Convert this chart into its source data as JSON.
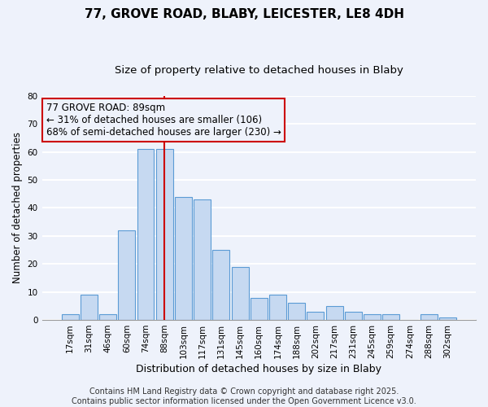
{
  "title": "77, GROVE ROAD, BLABY, LEICESTER, LE8 4DH",
  "subtitle": "Size of property relative to detached houses in Blaby",
  "xlabel": "Distribution of detached houses by size in Blaby",
  "ylabel": "Number of detached properties",
  "bar_labels": [
    "17sqm",
    "31sqm",
    "46sqm",
    "60sqm",
    "74sqm",
    "88sqm",
    "103sqm",
    "117sqm",
    "131sqm",
    "145sqm",
    "160sqm",
    "174sqm",
    "188sqm",
    "202sqm",
    "217sqm",
    "231sqm",
    "245sqm",
    "259sqm",
    "274sqm",
    "288sqm",
    "302sqm"
  ],
  "bar_values": [
    2,
    9,
    2,
    32,
    61,
    61,
    44,
    43,
    25,
    19,
    8,
    9,
    6,
    3,
    5,
    3,
    2,
    2,
    0,
    2,
    1
  ],
  "bar_color": "#c6d9f1",
  "bar_edgecolor": "#5b9bd5",
  "highlight_index": 5,
  "highlight_line_color": "#cc0000",
  "annotation_text": "77 GROVE ROAD: 89sqm\n← 31% of detached houses are smaller (106)\n68% of semi-detached houses are larger (230) →",
  "annotation_box_edgecolor": "#cc0000",
  "background_color": "#eef2fb",
  "grid_color": "#ffffff",
  "ylim": [
    0,
    80
  ],
  "yticks": [
    0,
    10,
    20,
    30,
    40,
    50,
    60,
    70,
    80
  ],
  "footer_text": "Contains HM Land Registry data © Crown copyright and database right 2025.\nContains public sector information licensed under the Open Government Licence v3.0.",
  "title_fontsize": 11,
  "subtitle_fontsize": 9.5,
  "xlabel_fontsize": 9,
  "ylabel_fontsize": 8.5,
  "tick_fontsize": 7.5,
  "annotation_fontsize": 8.5,
  "footer_fontsize": 7
}
